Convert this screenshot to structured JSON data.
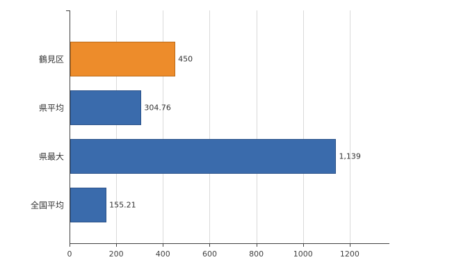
{
  "chart_data": {
    "type": "bar",
    "orientation": "horizontal",
    "title": "",
    "xlabel": "",
    "ylabel": "",
    "categories": [
      "鶴見区",
      "県平均",
      "県最大",
      "全国平均"
    ],
    "values": [
      450,
      304.76,
      1139,
      155.21
    ],
    "value_labels": [
      "450",
      "304.76",
      "1,139",
      "155.21"
    ],
    "bar_fill_colors": [
      "#ED8C2B",
      "#3A6BAC",
      "#3A6BAC",
      "#3A6BAC"
    ],
    "bar_border_colors": [
      "#BC6A17",
      "#2B5289",
      "#2B5289",
      "#2B5289"
    ],
    "x_ticks": [
      0,
      200,
      400,
      600,
      800,
      1000,
      1200
    ],
    "x_tick_labels": [
      "0",
      "200",
      "400",
      "600",
      "800",
      "1000",
      "1200"
    ],
    "xlim": [
      0,
      1370
    ],
    "grid": true,
    "legend": false,
    "axis_color": "#404040",
    "grid_color": "#d9d9d9",
    "background_color": "#ffffff",
    "text_color": "#333333"
  }
}
